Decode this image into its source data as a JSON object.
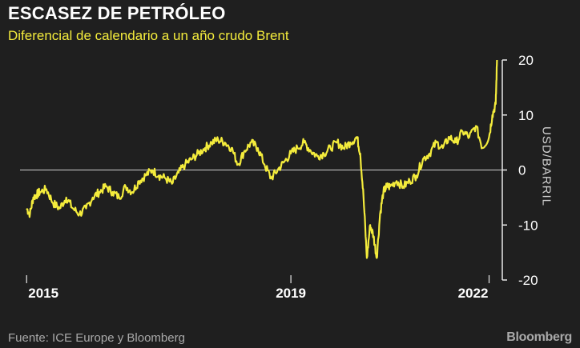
{
  "header": {
    "title": "ESCASEZ DE PETRÓLEO",
    "subtitle": "Diferencial de calendario a un año crudo Brent"
  },
  "footer": {
    "source": "Fuente: ICE Europe y Bloomberg",
    "logo": "Bloomberg"
  },
  "colors": {
    "background": "#1f1f1f",
    "line": "#f4ec3c",
    "axis": "#e8e8e8",
    "text": "#ffffff"
  },
  "chart_data": {
    "type": "line",
    "title": "ESCASEZ DE PETRÓLEO",
    "subtitle": "Diferencial de calendario a un año crudo Brent",
    "xlabel": "",
    "ylabel": "USD/BARRIL",
    "x_tick_labels": [
      "2015",
      "2019",
      "2022"
    ],
    "x_ticks": [
      2015.0,
      2019.0,
      2022.0
    ],
    "xlim": [
      2014.9,
      2022.2
    ],
    "y_ticks": [
      20,
      10,
      0,
      -10,
      -20
    ],
    "y_tick_labels": [
      "20",
      "10",
      "0",
      "-10",
      "-20"
    ],
    "ylim": [
      -20,
      20
    ],
    "y_axis_position": "right",
    "zero_line": true,
    "grid": false,
    "legend": "none",
    "series": [
      {
        "x": [
          2015.0,
          2015.05,
          2015.1,
          2015.15,
          2015.2,
          2015.3,
          2015.4,
          2015.5,
          2015.6,
          2015.7,
          2015.8,
          2015.9,
          2016.0,
          2016.1,
          2016.2,
          2016.3,
          2016.4,
          2016.5,
          2016.6,
          2016.7,
          2016.8,
          2016.9,
          2017.0,
          2017.1,
          2017.2,
          2017.3,
          2017.4,
          2017.5,
          2017.6,
          2017.7,
          2017.8,
          2017.9,
          2018.0,
          2018.1,
          2018.2,
          2018.3,
          2018.4,
          2018.5,
          2018.6,
          2018.7,
          2018.8,
          2018.9,
          2019.0,
          2019.1,
          2019.2,
          2019.3,
          2019.4,
          2019.5,
          2019.6,
          2019.7,
          2019.8,
          2019.9,
          2020.0,
          2020.05,
          2020.1,
          2020.15,
          2020.2,
          2020.25,
          2020.3,
          2020.35,
          2020.4,
          2020.45,
          2020.5,
          2020.6,
          2020.7,
          2020.8,
          2020.9,
          2021.0,
          2021.1,
          2021.2,
          2021.3,
          2021.4,
          2021.5,
          2021.6,
          2021.7,
          2021.8,
          2021.9,
          2022.0,
          2022.05,
          2022.1,
          2022.12
        ],
        "values": [
          -7,
          -8,
          -5,
          -4.5,
          -4,
          -3.5,
          -6,
          -7,
          -5,
          -7,
          -8,
          -7,
          -5,
          -4,
          -3,
          -4,
          -5,
          -3,
          -4,
          -2,
          -1,
          0,
          -1,
          -1.5,
          -2.5,
          -0.5,
          1,
          2,
          3,
          4,
          5,
          5.5,
          5,
          4,
          1,
          3.5,
          5,
          4,
          1,
          -1.5,
          0,
          1.5,
          3,
          4,
          5,
          3.5,
          2.5,
          3,
          4,
          5,
          4,
          5,
          6,
          3,
          -5,
          -16,
          -10,
          -12,
          -16,
          -8,
          -4,
          -3,
          -3,
          -2,
          -3,
          -2,
          -1,
          2,
          3,
          5,
          4,
          6,
          5,
          7,
          6,
          8,
          4,
          6,
          10,
          12,
          20
        ]
      }
    ]
  }
}
